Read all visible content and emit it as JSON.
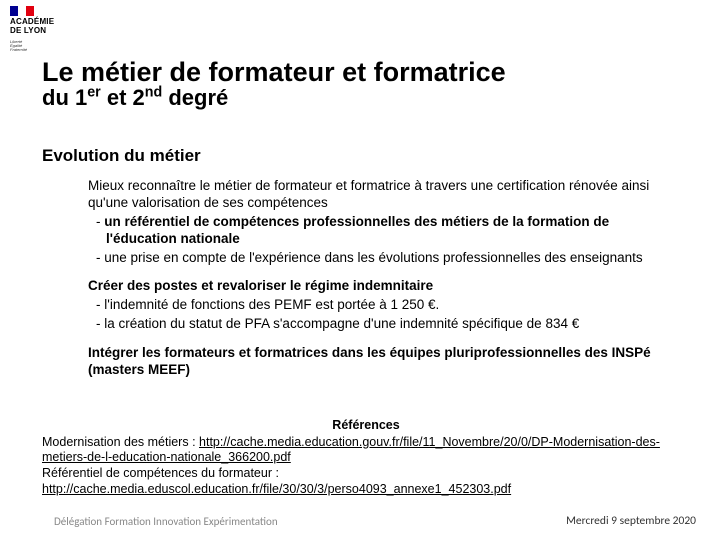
{
  "logo": {
    "line1": "ACADÉMIE",
    "line2": "DE LYON",
    "motto1": "Liberté",
    "motto2": "Égalité",
    "motto3": "Fraternité",
    "flag_colors": {
      "blue": "#000091",
      "white": "#ffffff",
      "red": "#e1000f"
    }
  },
  "title": {
    "main": "Le métier de formateur et formatrice",
    "sub_pre": "du 1",
    "sub_sup1": "er",
    "sub_mid": " et 2",
    "sub_sup2": "nd",
    "sub_post": " degré"
  },
  "section_heading": "Evolution du métier",
  "para1": {
    "intro": "Mieux reconnaître le métier de formateur et formatrice à travers une certification rénovée ainsi qu'une valorisation de ses compétences",
    "items": [
      {
        "bold": "un référentiel de compétences professionnelles des métiers de la formation de l'éducation nationale",
        "rest": ""
      },
      {
        "bold": "",
        "rest": "une prise en compte de l'expérience dans les évolutions professionnelles des enseignants"
      }
    ]
  },
  "para2": {
    "intro": "Créer des postes et revaloriser le régime indemnitaire",
    "items": [
      "l'indemnité de fonctions des PEMF est portée à 1 250 €.",
      "la création du statut de PFA s'accompagne d'une indemnité spécifique de 834 €"
    ]
  },
  "para3": {
    "intro": "Intégrer les formateurs et formatrices dans les équipes pluriprofessionnelles des INSPé (masters MEEF)"
  },
  "refs": {
    "title": "Références",
    "line1_label": "Modernisation des métiers : ",
    "line1_link": "http://cache.media.education.gouv.fr/file/11_Novembre/20/0/DP-Modernisation-des-metiers-de-l-education-nationale_366200.pdf",
    "line2_label": "Référentiel de compétences du formateur :",
    "line2_link": "http://cache.media.eduscol.education.fr/file/30/30/3/perso4093_annexe1_452303.pdf"
  },
  "footer": {
    "left": "Délégation Formation Innovation Expérimentation",
    "right": "Mercredi 9 septembre 2020"
  },
  "colors": {
    "text": "#000000",
    "footer_grey": "#888888",
    "background": "#ffffff"
  }
}
